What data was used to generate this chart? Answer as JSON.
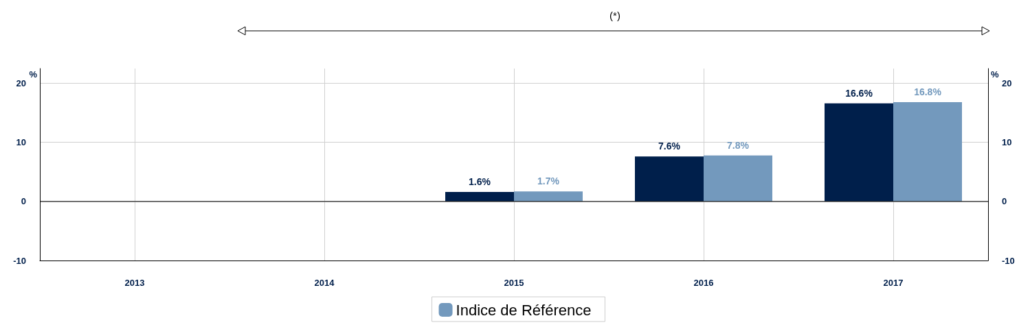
{
  "chart_data": {
    "type": "bar",
    "categories": [
      "2013",
      "2014",
      "2015",
      "2016",
      "2017"
    ],
    "series": [
      {
        "color": "#001f4b",
        "values": [
          null,
          null,
          1.6,
          7.6,
          16.6
        ],
        "value_labels": [
          null,
          null,
          "1.6%",
          "7.6%",
          "16.6%"
        ]
      },
      {
        "name": "Indice de Référence",
        "color": "#7399bd",
        "values": [
          null,
          null,
          1.7,
          7.8,
          16.8
        ],
        "value_labels": [
          null,
          null,
          "1.7%",
          "7.8%",
          "16.8%"
        ]
      }
    ],
    "ylabel": "%",
    "y2label": "%",
    "ylim": [
      -10,
      22.5
    ],
    "yticks": [
      -10,
      0,
      10,
      20
    ],
    "y2lim": [
      -10,
      22.5
    ],
    "y2ticks": [
      -10,
      0,
      10,
      20
    ],
    "ref_lines": [
      {
        "axis": "y",
        "value": 0,
        "color": "#000000"
      }
    ],
    "annotations": [
      "(*)"
    ],
    "grid": true,
    "legend": "bottom"
  }
}
